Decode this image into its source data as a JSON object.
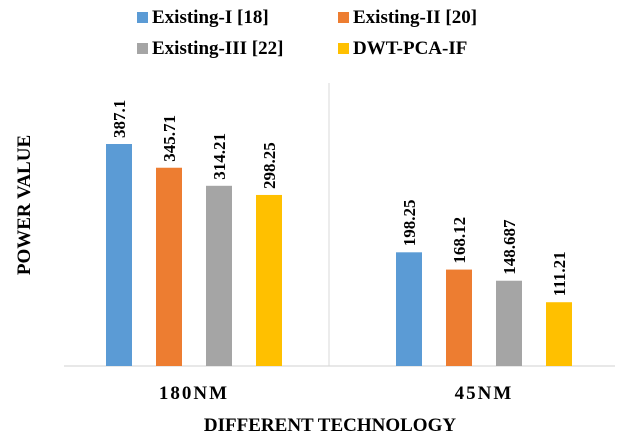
{
  "chart_data": {
    "type": "bar",
    "categories": [
      "180NM",
      "45NM"
    ],
    "series": [
      {
        "name": "Existing-I [18]",
        "color": "#5B9BD5",
        "values": [
          387.1,
          198.25
        ],
        "labels": [
          "387.1",
          "198.25"
        ]
      },
      {
        "name": "Existing-II [20]",
        "color": "#ED7D31",
        "values": [
          345.71,
          168.12
        ],
        "labels": [
          "345.71",
          "168.12"
        ]
      },
      {
        "name": "Existing-III [22]",
        "color": "#A5A5A5",
        "values": [
          314.21,
          148.687
        ],
        "labels": [
          "314.21",
          "148.687"
        ]
      },
      {
        "name": "DWT-PCA-IF",
        "color": "#FFC000",
        "values": [
          298.25,
          111.21
        ],
        "labels": [
          "298.25",
          "111.21"
        ]
      }
    ],
    "title": "",
    "xlabel": "DIFFERENT TECHNOLOGY",
    "ylabel": "POWER VALUE",
    "ylim": [
      0,
      450
    ],
    "grid": false,
    "legend_position": "top"
  }
}
